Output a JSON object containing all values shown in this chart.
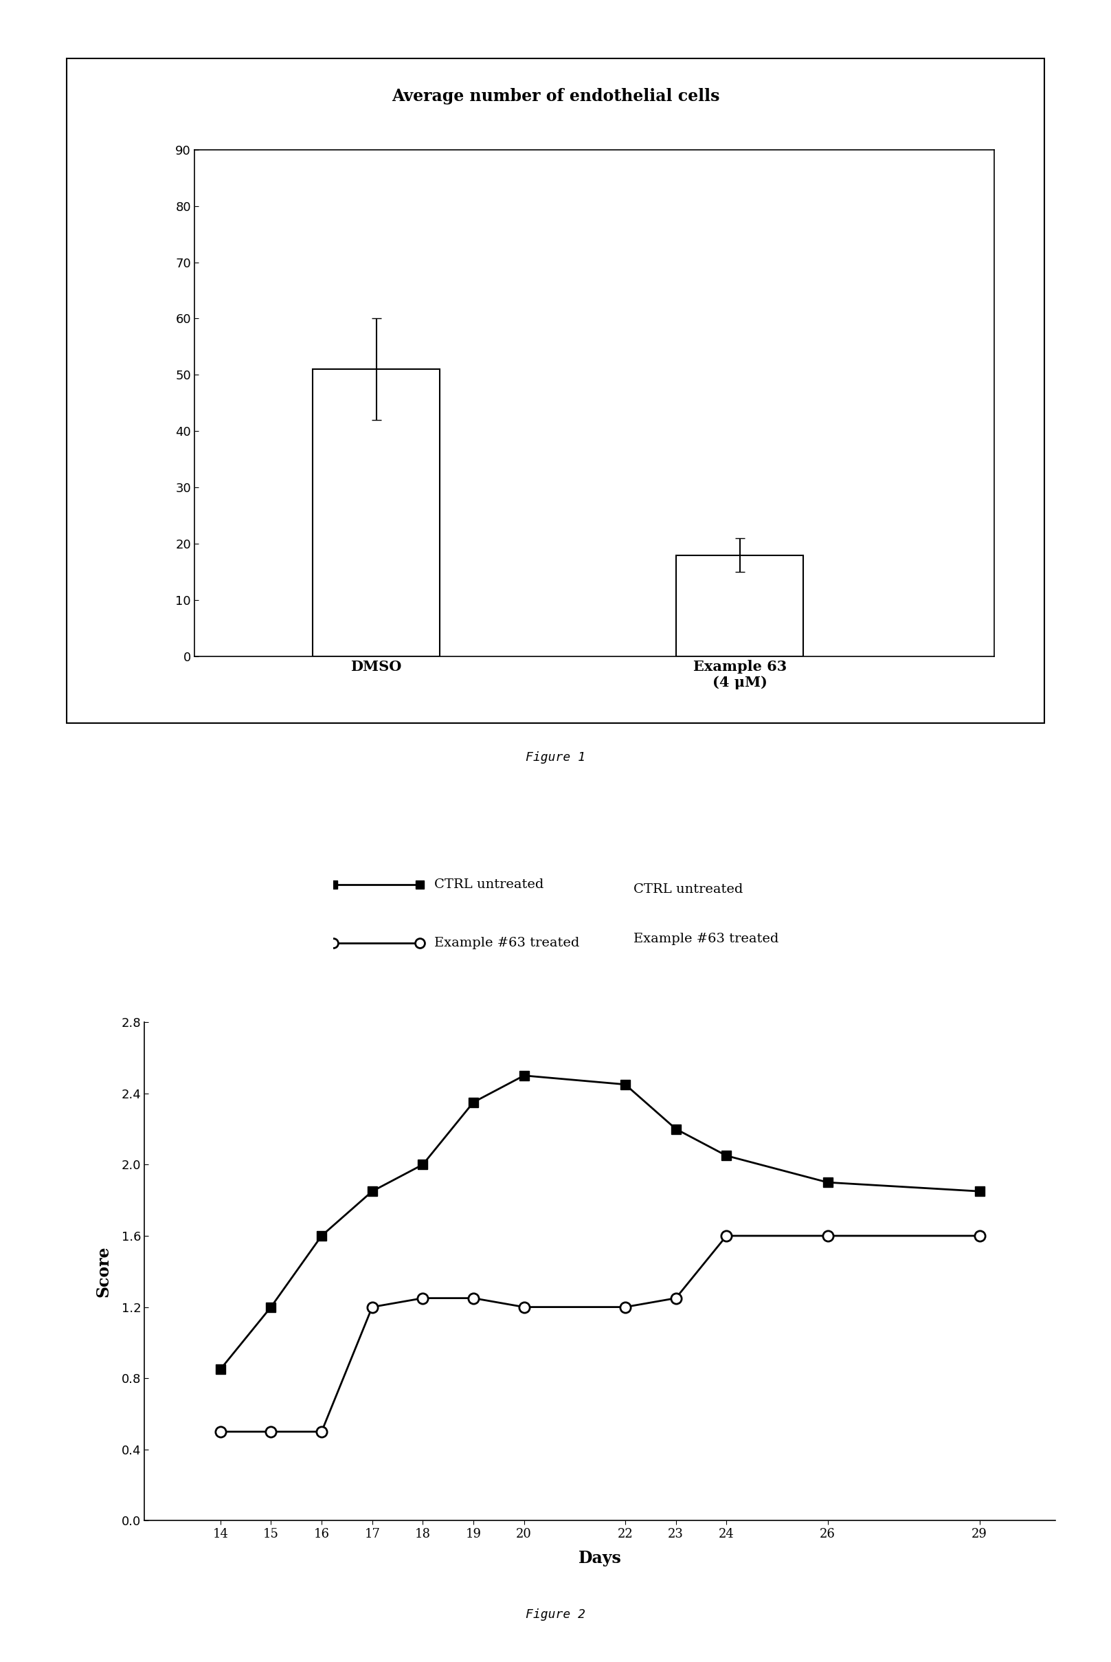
{
  "fig1": {
    "title": "Average number of endothelial cells",
    "categories": [
      "DMSO",
      "Example 63\n(4 μM)"
    ],
    "values": [
      51,
      18
    ],
    "errors": [
      9,
      3
    ],
    "ylim": [
      0,
      90
    ],
    "yticks": [
      0,
      10,
      20,
      30,
      40,
      50,
      60,
      70,
      80,
      90
    ],
    "bar_color": "#ffffff",
    "bar_edgecolor": "#000000",
    "bar_width": 0.35,
    "figure_label": "Figure 1"
  },
  "fig2": {
    "days": [
      14,
      15,
      16,
      17,
      18,
      19,
      20,
      22,
      23,
      24,
      26,
      29
    ],
    "ctrl_scores": [
      0.85,
      1.2,
      1.6,
      1.85,
      2.0,
      2.35,
      2.5,
      2.45,
      2.2,
      2.05,
      1.9,
      1.85
    ],
    "treated_scores": [
      0.5,
      0.5,
      0.5,
      1.2,
      1.25,
      1.25,
      1.2,
      1.2,
      1.25,
      1.6,
      1.6,
      1.6
    ],
    "ylim": [
      0,
      2.8
    ],
    "yticks": [
      0,
      0.4,
      0.8,
      1.2,
      1.6,
      2.0,
      2.4,
      2.8
    ],
    "xlabel": "Days",
    "ylabel": "Score",
    "ctrl_label": "CTRL untreated",
    "treated_label": "Example #63 treated",
    "figure_label": "Figure 2",
    "ctrl_color": "#000000",
    "treated_color": "#000000"
  },
  "background_color": "#ffffff",
  "text_color": "#000000"
}
